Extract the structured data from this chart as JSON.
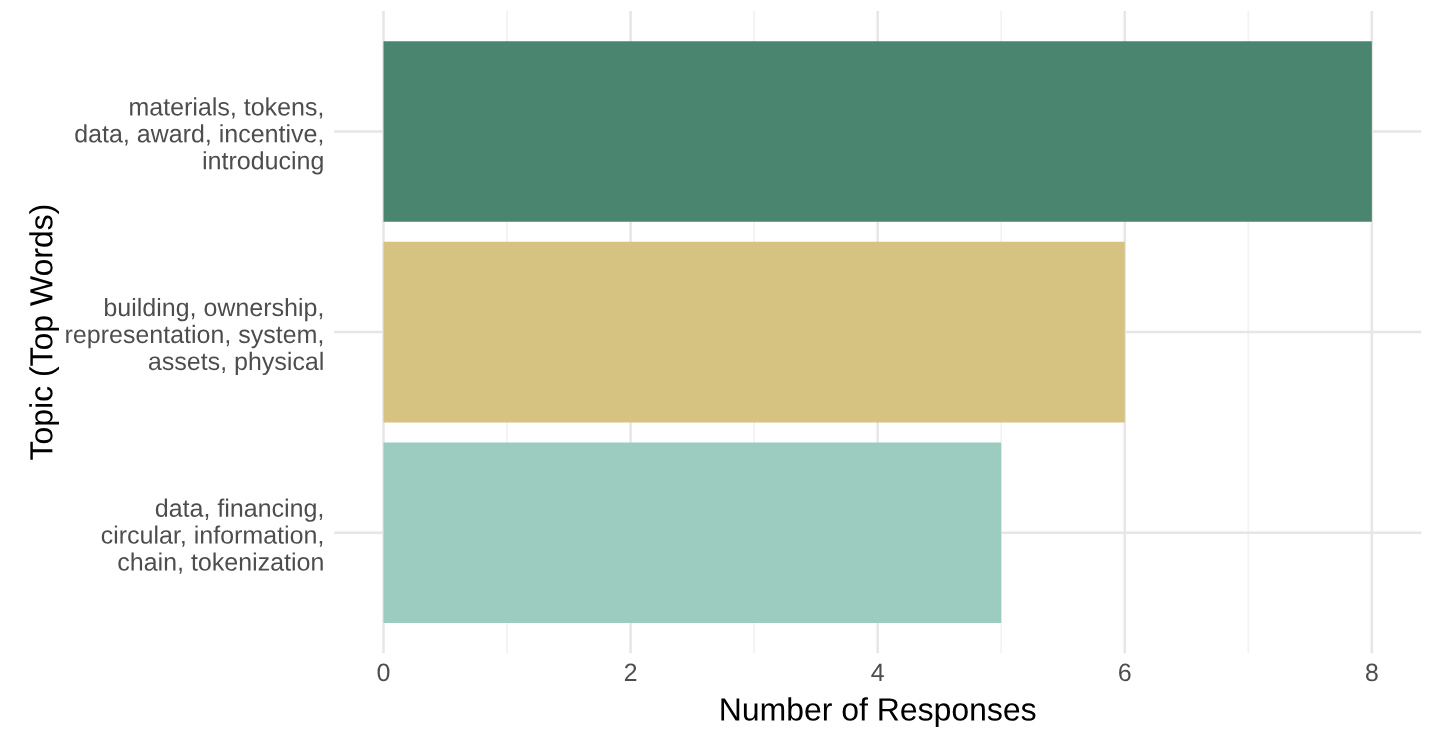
{
  "chart_data": {
    "type": "bar",
    "orientation": "horizontal",
    "xlabel": "Number of Responses",
    "ylabel": "Topic (Top Words)",
    "categories": [
      "materials, tokens,\ndata, award, incentive,\nintroducing",
      "building, ownership,\nrepresentation, system,\nassets, physical",
      "data, financing,\ncircular, information,\nchain, tokenization"
    ],
    "values": [
      8,
      6,
      5
    ],
    "colors": [
      "#4a8570",
      "#d6c281",
      "#9ccbbf"
    ],
    "xlim": [
      -0.4,
      8.4
    ],
    "xticks": [
      0,
      2,
      4,
      6,
      8
    ],
    "grid": true
  }
}
